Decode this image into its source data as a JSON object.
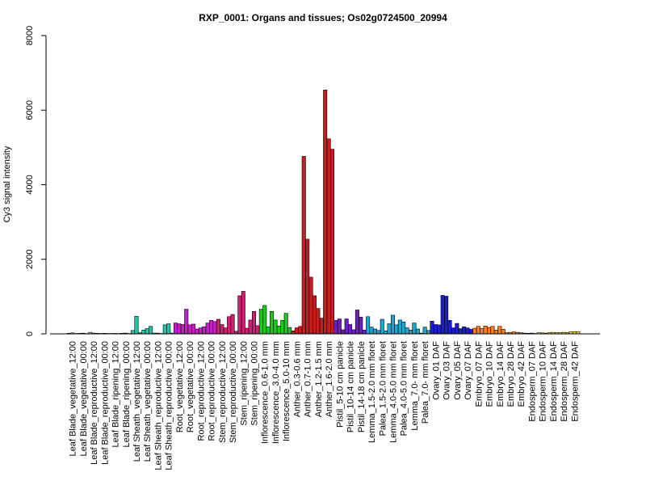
{
  "chart_data": {
    "type": "bar",
    "title": "RXP_0001: Organs and tissues; Os02g0724500_20994",
    "xlabel": "",
    "ylabel": "Cy3 signal intensity",
    "ylim": [
      0,
      8000
    ],
    "yticks": [
      0,
      2000,
      4000,
      6000,
      8000
    ],
    "grid": false,
    "categories": [
      "Leaf Blade_vegetative_12:00",
      "Leaf Blade_vegetative_00:00",
      "Leaf Blade_reproductive_12:00",
      "Leaf Blade_reproductive_00:00",
      "Leaf Blade_ripening_12:00",
      "Leaf Blade_ripening_00:00",
      "Leaf Sheath_vegetative_12:00",
      "Leaf Sheath_vegetative_00:00",
      "Leaf Sheath_reproductive_12:00",
      "Leaf Sheath_reproductive_00:00",
      "Root_vegetative_12:00",
      "Root_vegetative_00:00",
      "Root_reproductive_12:00",
      "Root_reproductive_00:00",
      "Stem_reproductive_12:00",
      "Stem_reproductive_00:00",
      "Stem_ripening_12:00",
      "Stem_ripening_00:00",
      "Inflorescence_0.6-1.0 mm",
      "Inflorescence_3.0-4.0 mm",
      "Inflorescence_5.0-10 mm",
      "Anther_0.3-0.6 mm",
      "Anther_0.7-1.0 mm",
      "Anther_1.2-1.5 mm",
      "Anther_1.6-2.0 mm",
      "Pistil_5-10 cm panicle",
      "Pistil_10-14 cm panicle",
      "Pistil_14-18 cm panicle",
      "Lemma_1.5-2.0 mm floret",
      "Palea_1.5-2.0 mm floret",
      "Lemma_4.0-5.0 mm floret",
      "Palea_4.0-5.0 mm floret",
      "Lemma_7.0- mm floret",
      "Palea_7.0- mm floret",
      "Ovary_01 DAF",
      "Ovary_03 DAF",
      "Ovary_05 DAF",
      "Ovary_07 DAF",
      "Embryo_07 DAF",
      "Embryo_10 DAF",
      "Embryo_14 DAF",
      "Embryo_28 DAF",
      "Embryo_42 DAF",
      "Endosperm_07 DAF",
      "Endosperm_10 DAF",
      "Endosperm_14 DAF",
      "Endosperm_28 DAF",
      "Endosperm_42 DAF"
    ],
    "groups": [
      {
        "color": "#d1d1d1",
        "values": [
          15,
          25,
          10
        ]
      },
      {
        "color": "#a3a3a3",
        "values": [
          12,
          18,
          8
        ]
      },
      {
        "color": "#c5c5c5",
        "values": [
          40,
          20,
          15
        ]
      },
      {
        "color": "#8f8f8f",
        "values": [
          10,
          15,
          10
        ]
      },
      {
        "color": "#c9c9c9",
        "values": [
          10,
          12,
          8
        ]
      },
      {
        "color": "#9c9c9c",
        "values": [
          15,
          20,
          10
        ]
      },
      {
        "color": "#1ec8a5",
        "values": [
          90,
          470,
          30
        ]
      },
      {
        "color": "#1ec8a5",
        "values": [
          100,
          140,
          200
        ]
      },
      {
        "color": "#1ec8a5",
        "values": [
          20,
          20,
          10
        ]
      },
      {
        "color": "#1ec8a5",
        "values": [
          240,
          270,
          20
        ]
      },
      {
        "color": "#c51ec5",
        "values": [
          290,
          270,
          250
        ]
      },
      {
        "color": "#c51ec5",
        "values": [
          660,
          240,
          260
        ]
      },
      {
        "color": "#c51ec5",
        "values": [
          130,
          160,
          190
        ]
      },
      {
        "color": "#c51ec5",
        "values": [
          290,
          360,
          330
        ]
      },
      {
        "color": "#d11e74",
        "values": [
          390,
          250,
          160
        ]
      },
      {
        "color": "#d11e74",
        "values": [
          460,
          520,
          70
        ]
      },
      {
        "color": "#d11e74",
        "values": [
          1020,
          1140,
          150
        ]
      },
      {
        "color": "#d11e74",
        "values": [
          370,
          600,
          220
        ]
      },
      {
        "color": "#1ec81e",
        "values": [
          660,
          760,
          190
        ]
      },
      {
        "color": "#1ec81e",
        "values": [
          600,
          370,
          210
        ]
      },
      {
        "color": "#1ec81e",
        "values": [
          360,
          550,
          170
        ]
      },
      {
        "color": "#c51e1e",
        "values": [
          80,
          160,
          200
        ]
      },
      {
        "color": "#c51e1e",
        "values": [
          4760,
          2540,
          1520
        ]
      },
      {
        "color": "#c51e1e",
        "values": [
          1020,
          680,
          420
        ]
      },
      {
        "color": "#c51e1e",
        "values": [
          6540,
          5230,
          4950
        ]
      },
      {
        "color": "#6e1ec8",
        "values": [
          360,
          400,
          110
        ]
      },
      {
        "color": "#6e1ec8",
        "values": [
          400,
          250,
          110
        ]
      },
      {
        "color": "#6e1ec8",
        "values": [
          640,
          450,
          100
        ]
      },
      {
        "color": "#1ea5d1",
        "values": [
          460,
          180,
          130
        ]
      },
      {
        "color": "#1ea5d1",
        "values": [
          90,
          390,
          80
        ]
      },
      {
        "color": "#1ea5d1",
        "values": [
          270,
          500,
          240
        ]
      },
      {
        "color": "#1ea5d1",
        "values": [
          370,
          320,
          160
        ]
      },
      {
        "color": "#1ea5d1",
        "values": [
          100,
          290,
          130
        ]
      },
      {
        "color": "#1ea5d1",
        "values": [
          20,
          180,
          90
        ]
      },
      {
        "color": "#1e1ec8",
        "values": [
          340,
          250,
          240
        ]
      },
      {
        "color": "#1e1ec8",
        "values": [
          1030,
          1010,
          360
        ]
      },
      {
        "color": "#1e1ec8",
        "values": [
          160,
          280,
          140
        ]
      },
      {
        "color": "#1e1ec8",
        "values": [
          190,
          160,
          120
        ]
      },
      {
        "color": "#ff7f1e",
        "values": [
          150,
          200,
          140
        ]
      },
      {
        "color": "#ff7f1e",
        "values": [
          210,
          170,
          200
        ]
      },
      {
        "color": "#ff7f1e",
        "values": [
          100,
          200,
          120
        ]
      },
      {
        "color": "#ff7f1e",
        "values": [
          30,
          40,
          50
        ]
      },
      {
        "color": "#ff7f1e",
        "values": [
          40,
          30,
          20
        ]
      },
      {
        "color": "#ffd700",
        "values": [
          15,
          20,
          10
        ]
      },
      {
        "color": "#ffd700",
        "values": [
          30,
          25,
          20
        ]
      },
      {
        "color": "#ffd700",
        "values": [
          30,
          40,
          30
        ]
      },
      {
        "color": "#ffd700",
        "values": [
          30,
          40,
          35
        ]
      },
      {
        "color": "#ffd700",
        "values": [
          50,
          60,
          55
        ]
      }
    ]
  }
}
